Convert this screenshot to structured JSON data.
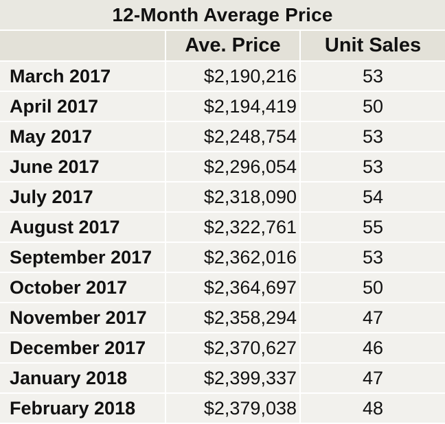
{
  "table": {
    "title": "12-Month Average Price",
    "headers": [
      "",
      "Ave. Price",
      "Unit Sales"
    ],
    "rows": [
      {
        "month": "March 2017",
        "price": "$2,190,216",
        "sales": "53"
      },
      {
        "month": "April 2017",
        "price": "$2,194,419",
        "sales": "50"
      },
      {
        "month": "May 2017",
        "price": "$2,248,754",
        "sales": "53"
      },
      {
        "month": "June 2017",
        "price": "$2,296,054",
        "sales": "53"
      },
      {
        "month": "July 2017",
        "price": "$2,318,090",
        "sales": "54"
      },
      {
        "month": "August 2017",
        "price": "$2,322,761",
        "sales": "55"
      },
      {
        "month": "September 2017",
        "price": "$2,362,016",
        "sales": "53"
      },
      {
        "month": "October 2017",
        "price": "$2,364,697",
        "sales": "50"
      },
      {
        "month": "November 2017",
        "price": "$2,358,294",
        "sales": "47"
      },
      {
        "month": "December 2017",
        "price": "$2,370,627",
        "sales": "46"
      },
      {
        "month": "January 2018",
        "price": "$2,399,337",
        "sales": "47"
      },
      {
        "month": "February 2018",
        "price": "$2,379,038",
        "sales": "48"
      }
    ],
    "colors": {
      "title_bg": "#e9e8e1",
      "header_bg": "#e3e1d8",
      "row_bg": "#f2f1ed",
      "divider": "#ffffff",
      "text": "#111111"
    }
  }
}
